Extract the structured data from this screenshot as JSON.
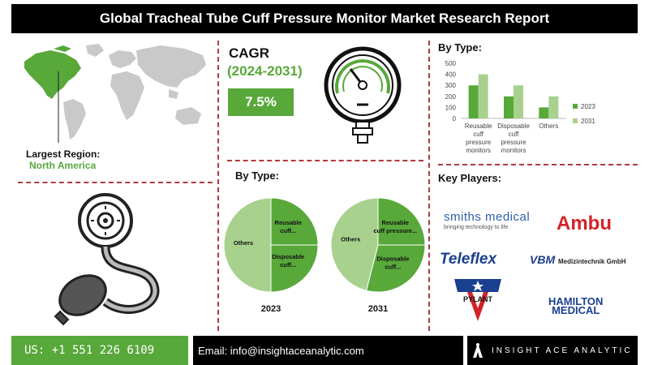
{
  "title": "Global Tracheal Tube Cuff Pressure Monitor Market Research Report",
  "region": {
    "label": "Largest Region:",
    "value": "North America"
  },
  "cagr": {
    "title": "CAGR",
    "period": "(2024-2031)",
    "value": "7.5%"
  },
  "pie_section": {
    "heading": "By Type:"
  },
  "bar_section": {
    "heading": "By Type:"
  },
  "players": {
    "heading": "Key Players:",
    "smiths": "smiths medical",
    "smiths_tag": "bringing technology to life",
    "ambu": "Ambu",
    "teleflex": "Teleflex",
    "vbm": "VBM",
    "vbm_small": "Medizintechnik GmbH",
    "pylant": "PYLANT",
    "hamilton_1": "HAMILTON",
    "hamilton_2": "MEDICAL"
  },
  "footer": {
    "phone": "US: +1 551 226 6109",
    "email": "Email: info@insightaceanalytic.com",
    "brand": "INSIGHT ACE ANALYTIC"
  },
  "colors": {
    "green": "#58a83a",
    "light_green": "#a9d18e",
    "black": "#000000",
    "separator": "#b23a3a"
  },
  "chart_data": [
    {
      "type": "bar",
      "categories": [
        "Reusable cuff pressure monitors",
        "Disposable cuff pressure monitors",
        "Others"
      ],
      "series": [
        {
          "name": "2023",
          "values": [
            300,
            200,
            100
          ]
        },
        {
          "name": "2031",
          "values": [
            400,
            300,
            200
          ]
        }
      ],
      "ylim": [
        0,
        500
      ],
      "yticks": [
        "0",
        "100",
        "200",
        "300",
        "400",
        "500"
      ],
      "legend": "right",
      "colors": [
        "#58a83a",
        "#a9d18e"
      ]
    },
    {
      "type": "pie",
      "title": "2023",
      "labels": [
        "Reusable cuff...",
        "Disposable cuff...",
        "Others"
      ],
      "values": [
        25,
        25,
        50
      ],
      "colors": [
        "#58a83a",
        "#58a83a",
        "#a9d18e"
      ]
    },
    {
      "type": "pie",
      "title": "2031",
      "labels": [
        "Reusable cuff pressure...",
        "Disposable cuff...",
        "Others"
      ],
      "values": [
        25,
        29,
        46
      ],
      "colors": [
        "#58a83a",
        "#58a83a",
        "#a9d18e"
      ]
    }
  ]
}
